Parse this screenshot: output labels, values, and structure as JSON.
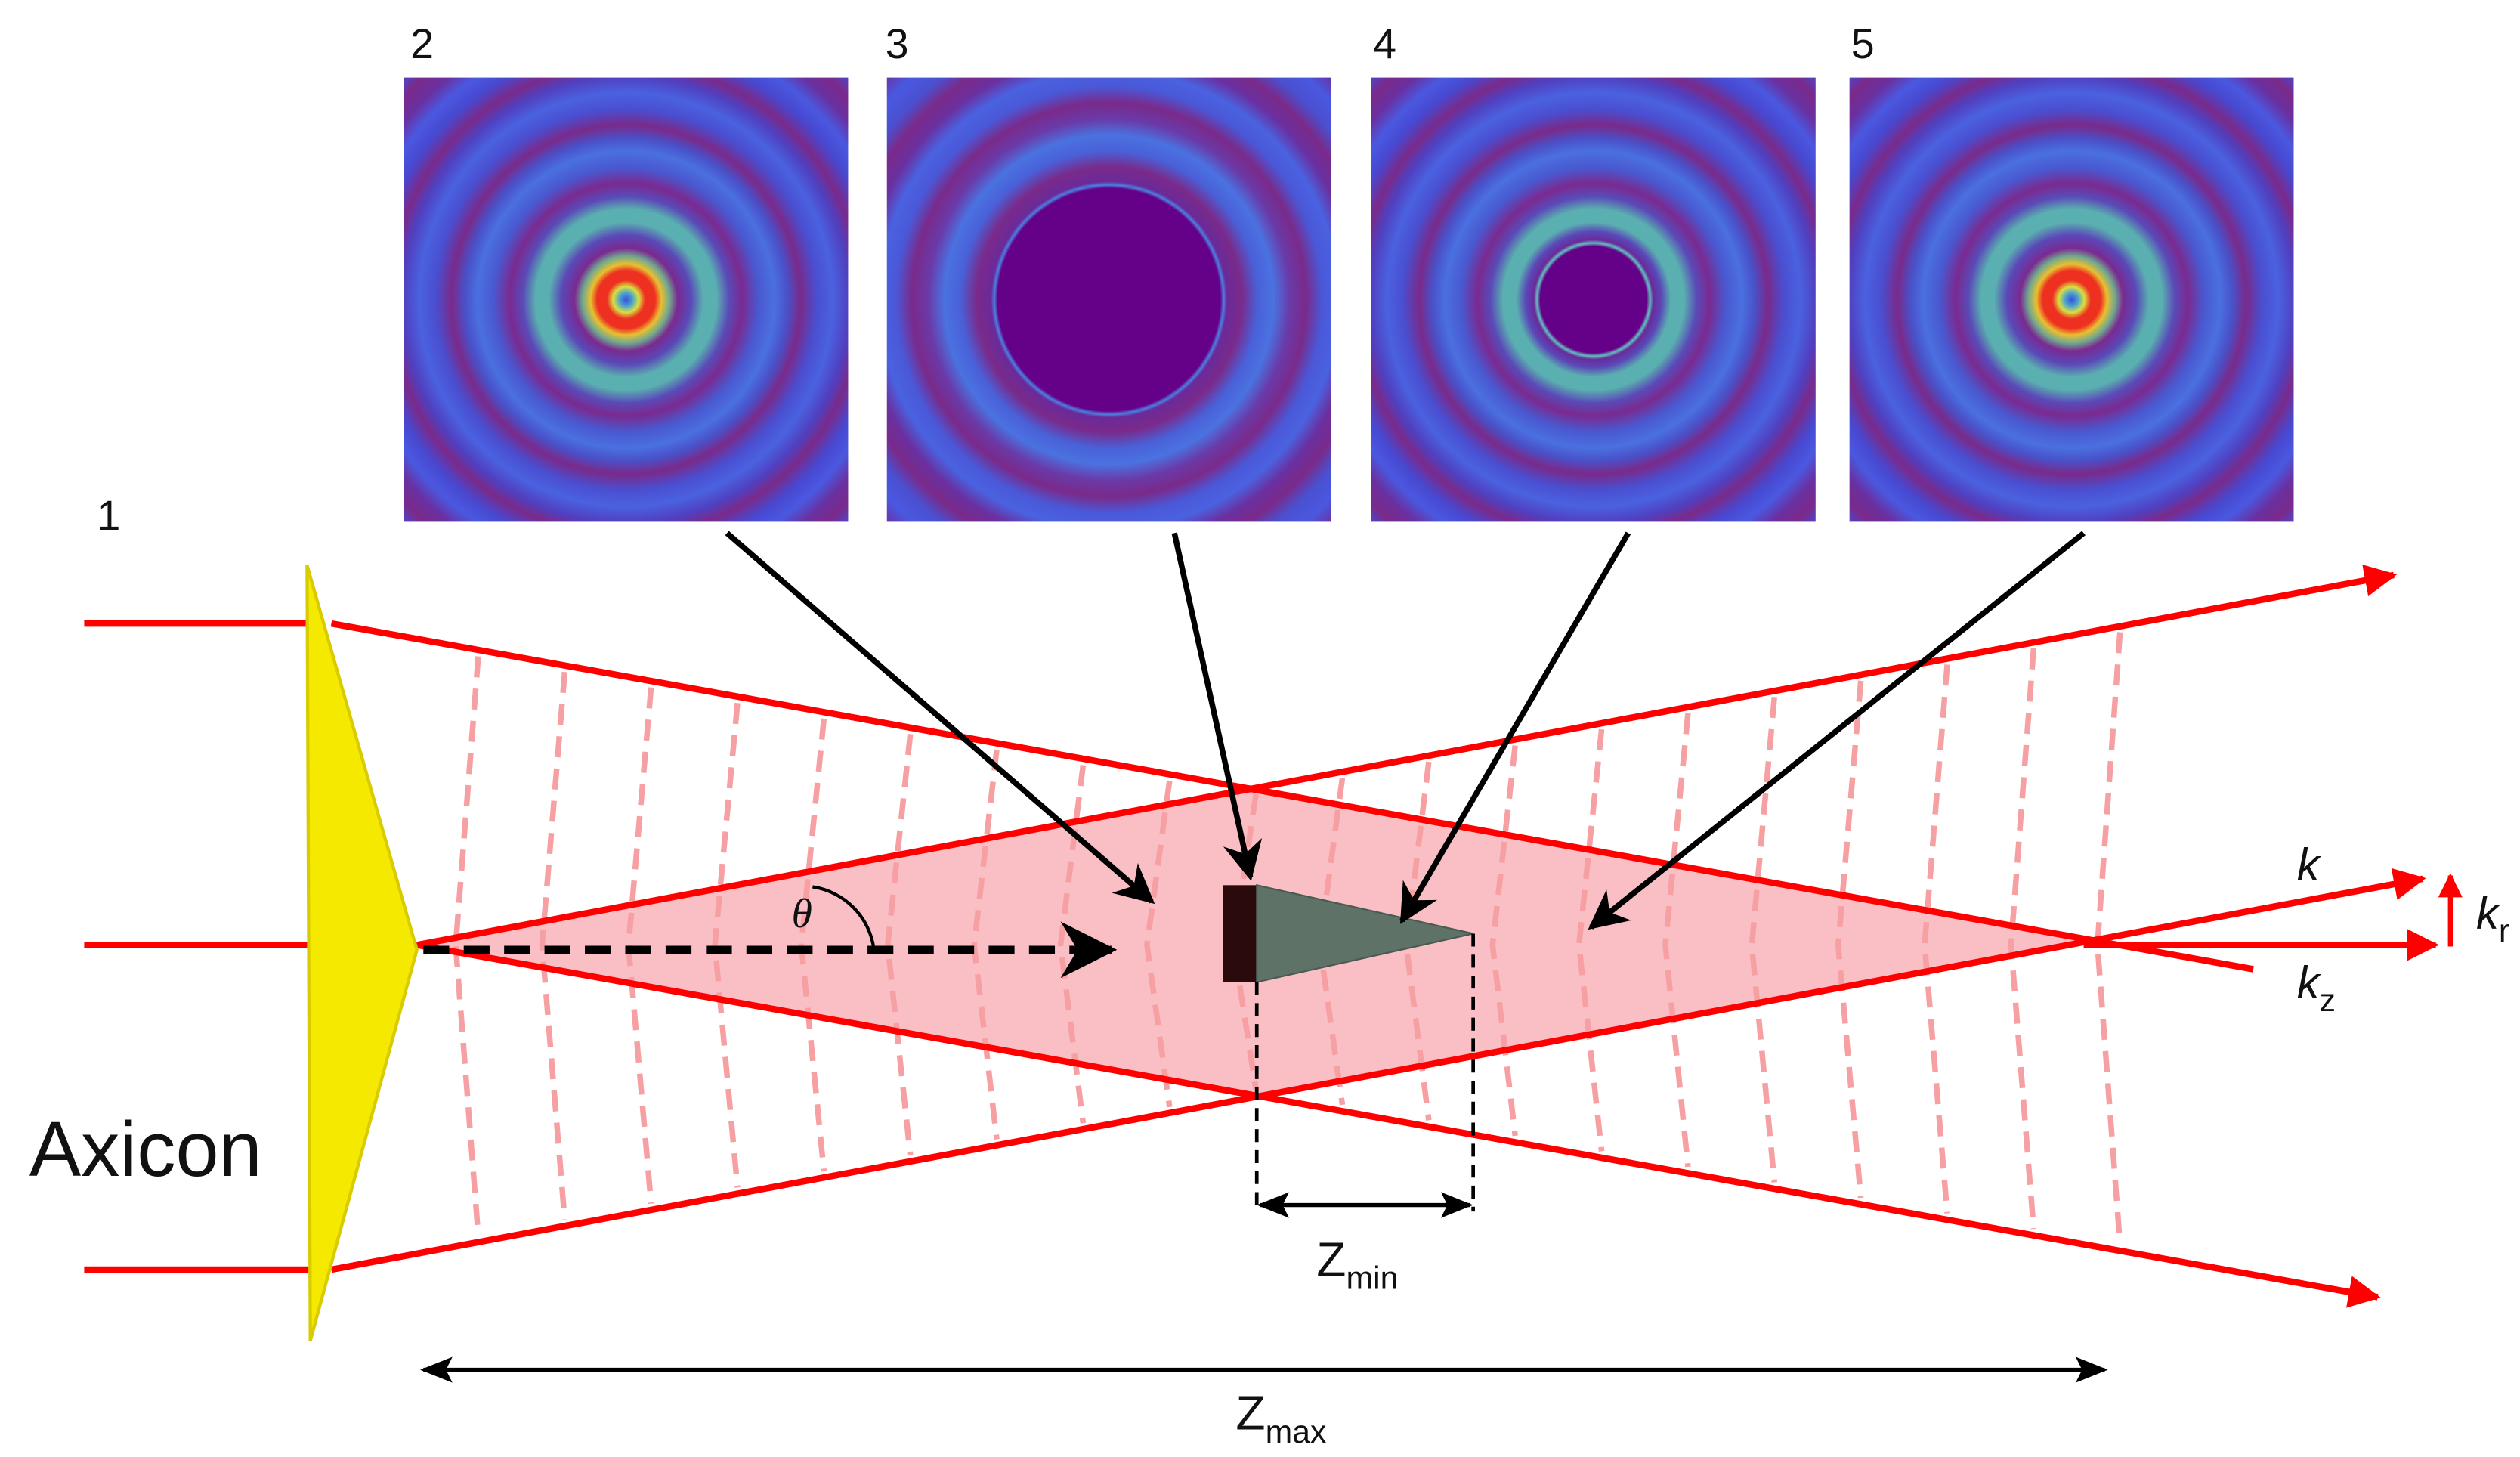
{
  "diagram": {
    "panel_labels": [
      "1",
      "2",
      "3",
      "4",
      "5"
    ],
    "axicon_label": "Axicon",
    "theta_label": "θ",
    "k_label": "k",
    "kz_label": {
      "base": "k",
      "sub": "z"
    },
    "kr_label": {
      "base": "k",
      "sub": "r"
    },
    "zmin_label": {
      "base": "Z",
      "sub": "min"
    },
    "zmax_label": {
      "base": "Z",
      "sub": "max"
    },
    "colors": {
      "ray": "#ff0000",
      "overlap_region": "#f9bfc4",
      "wavefront": "#f7a0a3",
      "axicon": "#f5e900",
      "obstacle_block": "#2a0a0a",
      "obstacle_shadow": "#5e7268",
      "arrow": "#000000"
    },
    "intensity_panels": [
      {
        "id": "2",
        "pattern": "bessel-ring-pattern"
      },
      {
        "id": "3",
        "pattern": "shadowed-pattern-large-dark-disk"
      },
      {
        "id": "4",
        "pattern": "shadowed-pattern-small-dark-disk"
      },
      {
        "id": "5",
        "pattern": "bessel-ring-pattern-reconstructed"
      }
    ]
  }
}
